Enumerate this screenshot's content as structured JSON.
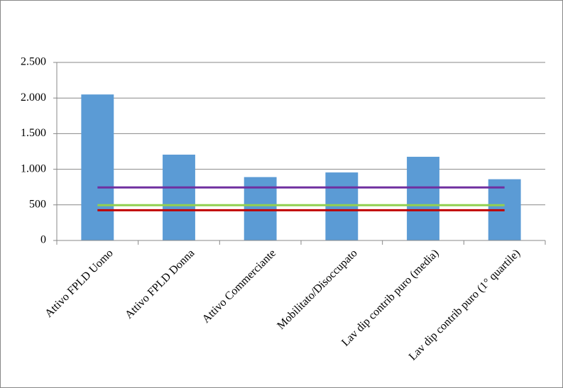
{
  "chart_data": {
    "type": "bar",
    "categories": [
      "Attivo FPLD Uomo",
      "Attivo FPLD Donna",
      "Attivo Commerciante",
      "Mobilitato/Disoccupato",
      "Lav dip contrib puro (media)",
      "Lav dip contrib puro (1° quartile)"
    ],
    "values": [
      2050,
      1205,
      890,
      955,
      1175,
      860
    ],
    "color": "#5b9bd5",
    "lines": [
      {
        "color": "#7030a0",
        "values": [
          745,
          745,
          745,
          745,
          745,
          745
        ]
      },
      {
        "color": "#92d050",
        "values": [
          495,
          495,
          495,
          495,
          495,
          495
        ]
      },
      {
        "color": "#c00000",
        "values": [
          425,
          425,
          425,
          425,
          425,
          425
        ]
      }
    ],
    "ylim": [
      0,
      2500
    ],
    "yticks": [
      0,
      500,
      {
        "value": 1000,
        "label": "1.000"
      },
      {
        "value": 1500,
        "label": "1.500"
      },
      {
        "value": 2000,
        "label": "2.000"
      },
      {
        "value": 2500,
        "label": "2.500"
      }
    ],
    "grid": true
  }
}
